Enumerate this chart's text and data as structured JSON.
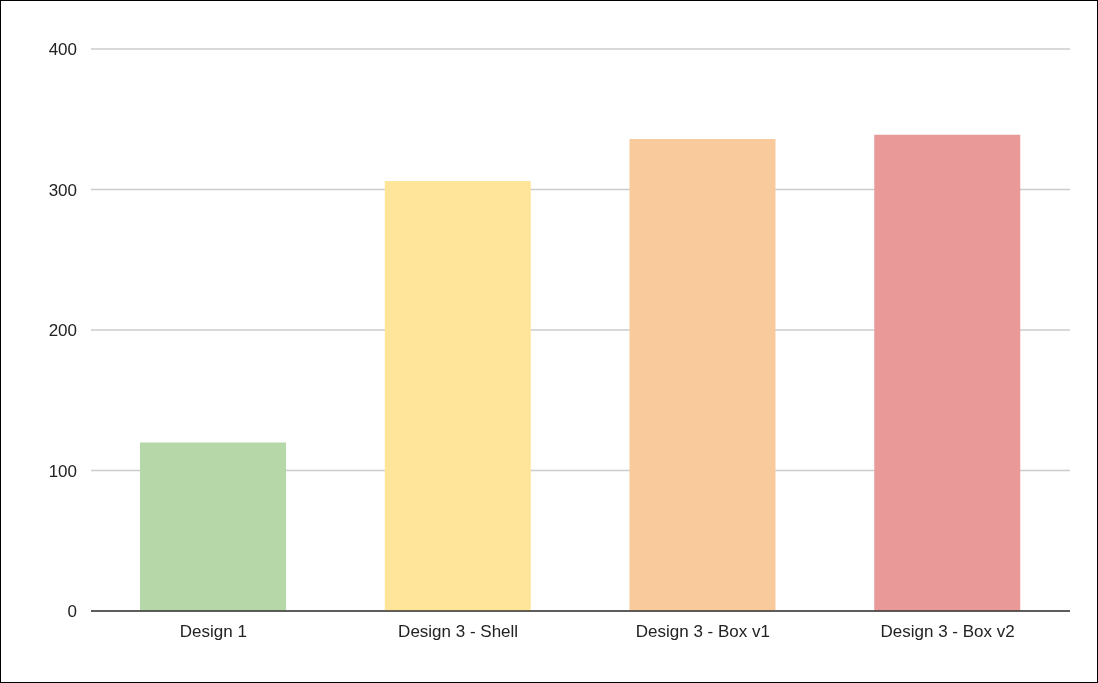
{
  "chart_data": {
    "type": "bar",
    "categories": [
      "Design 1",
      "Design 3 - Shell",
      "Design 3 - Box v1",
      "Design 3 - Box v2"
    ],
    "values": [
      120,
      306,
      336,
      339
    ],
    "colors": [
      "#b6d7a8",
      "#ffe599",
      "#f9cb9c",
      "#ea9999"
    ],
    "ylim": [
      0,
      400
    ],
    "yticks": [
      0,
      100,
      200,
      300,
      400
    ],
    "grid": "y"
  }
}
